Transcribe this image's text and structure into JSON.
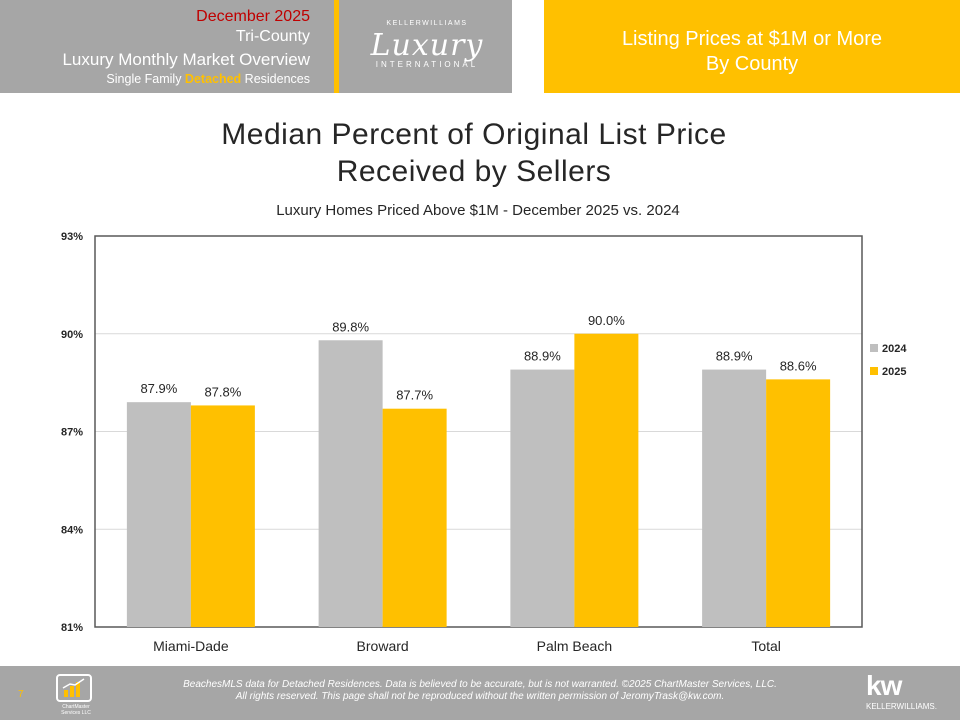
{
  "header": {
    "date": "December 2025",
    "region": "Tri-County",
    "report_title": "Luxury Monthly Market Overview",
    "subtitle_pre": "Single Family ",
    "subtitle_highlight": "Detached",
    "subtitle_post": " Residences",
    "logo_top": "KELLERWILLIAMS",
    "logo_main": "Luxury",
    "logo_bottom": "INTERNATIONAL",
    "right_line1": "Listing Prices at $1M or More",
    "right_line2": "By County"
  },
  "chart_data": {
    "type": "bar",
    "title_line1": "Median Percent of Original List Price",
    "title_line2": "Received by Sellers",
    "subtitle": "Luxury Homes Priced Above $1M - December 2025 vs. 2024",
    "categories": [
      "Miami-Dade",
      "Broward",
      "Palm Beach",
      "Total"
    ],
    "series": [
      {
        "name": "2024",
        "color": "#bfbfbf",
        "values": [
          87.9,
          89.8,
          88.9,
          88.9
        ],
        "labels": [
          "87.9%",
          "89.8%",
          "88.9%",
          "88.9%"
        ]
      },
      {
        "name": "2025",
        "color": "#ffc000",
        "values": [
          87.8,
          87.7,
          90.0,
          88.6
        ],
        "labels": [
          "87.8%",
          "87.7%",
          "90.0%",
          "88.6%"
        ]
      }
    ],
    "ylim": [
      81,
      93
    ],
    "yticks": [
      81,
      84,
      87,
      90,
      93
    ],
    "ytick_labels": [
      "81%",
      "84%",
      "87%",
      "90%",
      "93%"
    ],
    "grid": true,
    "legend_position": "right"
  },
  "footer": {
    "page_number": "7",
    "logo_label": "ChartMaster Services LLC",
    "disclaimer_line1": "BeachesMLS data for Detached Residences.  Data is believed to be accurate, but is not warranted.  ©2025  ChartMaster Services, LLC.",
    "disclaimer_line2": "All rights reserved. This page shall not be reproduced without the written permission of JeromyTrask@kw.com.",
    "kw_logo": "kw",
    "kw_name": "KELLERWILLIAMS."
  }
}
